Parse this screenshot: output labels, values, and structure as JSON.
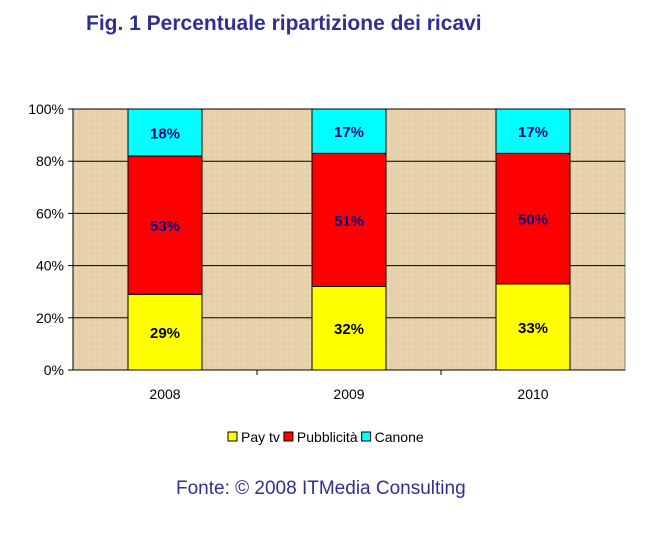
{
  "title": "Fig. 1 Percentuale ripartizione dei ricavi",
  "source": "Fonte: © 2008 ITMedia Consulting",
  "colors": {
    "title": "#2e3192",
    "pay_tv": "#ffff00",
    "pubblicita": "#ff0000",
    "canone": "#00ffff",
    "plot_bg": "#e7d2ab",
    "label_dark": "#000080"
  },
  "chart_data": {
    "type": "bar",
    "stacked": true,
    "percent": true,
    "title": "Fig. 1 Percentuale ripartizione dei ricavi",
    "categories": [
      "2008",
      "2009",
      "2010"
    ],
    "series": [
      {
        "name": "Pay tv",
        "values": [
          29,
          32,
          33
        ],
        "labels": [
          "29%",
          "32%",
          "33%"
        ],
        "color": "#ffff00"
      },
      {
        "name": "Pubblicità",
        "values": [
          53,
          51,
          50
        ],
        "labels": [
          "53%",
          "51%",
          "50%"
        ],
        "color": "#ff0000"
      },
      {
        "name": "Canone",
        "values": [
          18,
          17,
          17
        ],
        "labels": [
          "18%",
          "17%",
          "17%"
        ],
        "color": "#00ffff"
      }
    ],
    "ylim": [
      0,
      100
    ],
    "yticks": [
      "0%",
      "20%",
      "40%",
      "60%",
      "80%",
      "100%"
    ],
    "grid": true,
    "legend": "bottom"
  }
}
